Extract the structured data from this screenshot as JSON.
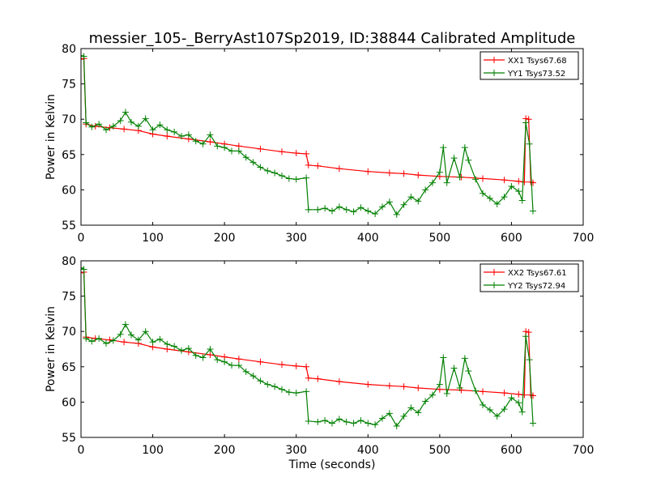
{
  "title": "messier_105-_BerryAst107Sp2019, ID:38844 Calibrated Amplitude",
  "colors": {
    "xx": "#ff0000",
    "yy": "#008000",
    "axis": "#000000"
  },
  "chart_data": [
    {
      "type": "line",
      "ylabel": "Power in Kelvin",
      "xlabel": "",
      "xlim": [
        0,
        700
      ],
      "ylim": [
        55,
        80
      ],
      "xticks": [
        "0",
        "100",
        "200",
        "300",
        "400",
        "500",
        "600",
        "700"
      ],
      "yticks": [
        "55",
        "60",
        "65",
        "70",
        "75",
        "80"
      ],
      "legend_position": "top-right",
      "series": [
        {
          "name": "XX1 Tsys67.68",
          "color": "#ff0000",
          "points": [
            [
              0,
              78.5
            ],
            [
              4,
              78.6
            ],
            [
              7,
              69.3
            ],
            [
              20,
              69.0
            ],
            [
              40,
              68.8
            ],
            [
              60,
              68.6
            ],
            [
              80,
              68.4
            ],
            [
              100,
              67.9
            ],
            [
              120,
              67.6
            ],
            [
              150,
              67.2
            ],
            [
              180,
              66.8
            ],
            [
              200,
              66.5
            ],
            [
              220,
              66.2
            ],
            [
              250,
              65.8
            ],
            [
              280,
              65.4
            ],
            [
              300,
              65.2
            ],
            [
              314,
              65.1
            ],
            [
              317,
              63.5
            ],
            [
              330,
              63.4
            ],
            [
              360,
              63.0
            ],
            [
              400,
              62.6
            ],
            [
              430,
              62.4
            ],
            [
              450,
              62.3
            ],
            [
              470,
              62.1
            ],
            [
              500,
              61.9
            ],
            [
              530,
              61.8
            ],
            [
              560,
              61.6
            ],
            [
              590,
              61.4
            ],
            [
              610,
              61.2
            ],
            [
              618,
              61.1
            ],
            [
              620,
              70.1
            ],
            [
              624,
              70.0
            ],
            [
              627,
              61.1
            ],
            [
              630,
              61.0
            ]
          ]
        },
        {
          "name": "YY1 Tsys73.52",
          "color": "#008000",
          "points": [
            [
              0,
              79.0
            ],
            [
              4,
              78.9
            ],
            [
              7,
              69.5
            ],
            [
              15,
              68.9
            ],
            [
              25,
              69.3
            ],
            [
              35,
              68.5
            ],
            [
              45,
              69.0
            ],
            [
              55,
              69.8
            ],
            [
              62,
              71.0
            ],
            [
              70,
              69.6
            ],
            [
              80,
              69.0
            ],
            [
              90,
              70.1
            ],
            [
              100,
              68.5
            ],
            [
              110,
              69.2
            ],
            [
              120,
              68.5
            ],
            [
              130,
              68.2
            ],
            [
              140,
              67.6
            ],
            [
              150,
              67.8
            ],
            [
              160,
              66.9
            ],
            [
              170,
              66.5
            ],
            [
              180,
              67.8
            ],
            [
              190,
              66.2
            ],
            [
              200,
              66.0
            ],
            [
              210,
              65.5
            ],
            [
              220,
              65.5
            ],
            [
              230,
              64.6
            ],
            [
              240,
              63.9
            ],
            [
              250,
              63.2
            ],
            [
              260,
              62.7
            ],
            [
              270,
              62.4
            ],
            [
              280,
              62.0
            ],
            [
              290,
              61.6
            ],
            [
              300,
              61.5
            ],
            [
              314,
              61.7
            ],
            [
              317,
              57.2
            ],
            [
              330,
              57.2
            ],
            [
              340,
              57.4
            ],
            [
              350,
              57.0
            ],
            [
              360,
              57.6
            ],
            [
              370,
              57.2
            ],
            [
              380,
              56.9
            ],
            [
              390,
              57.5
            ],
            [
              400,
              57.0
            ],
            [
              410,
              56.6
            ],
            [
              420,
              57.6
            ],
            [
              430,
              58.3
            ],
            [
              440,
              56.5
            ],
            [
              450,
              57.9
            ],
            [
              460,
              59.0
            ],
            [
              470,
              58.4
            ],
            [
              480,
              60.0
            ],
            [
              490,
              61.0
            ],
            [
              500,
              62.5
            ],
            [
              505,
              66.0
            ],
            [
              510,
              61.0
            ],
            [
              520,
              64.5
            ],
            [
              528,
              61.8
            ],
            [
              535,
              66.0
            ],
            [
              540,
              64.2
            ],
            [
              550,
              61.5
            ],
            [
              560,
              59.5
            ],
            [
              570,
              58.8
            ],
            [
              580,
              58.0
            ],
            [
              590,
              59.0
            ],
            [
              600,
              60.5
            ],
            [
              610,
              59.8
            ],
            [
              615,
              58.5
            ],
            [
              620,
              69.5
            ],
            [
              625,
              66.5
            ],
            [
              630,
              57.0
            ]
          ]
        }
      ]
    },
    {
      "type": "line",
      "ylabel": "Power in Kelvin",
      "xlabel": "Time (seconds)",
      "xlim": [
        0,
        700
      ],
      "ylim": [
        55,
        80
      ],
      "xticks": [
        "0",
        "100",
        "200",
        "300",
        "400",
        "500",
        "600",
        "700"
      ],
      "yticks": [
        "55",
        "60",
        "65",
        "70",
        "75",
        "80"
      ],
      "legend_position": "top-right",
      "series": [
        {
          "name": "XX2 Tsys67.61",
          "color": "#ff0000",
          "points": [
            [
              0,
              78.3
            ],
            [
              4,
              78.4
            ],
            [
              7,
              69.2
            ],
            [
              20,
              69.0
            ],
            [
              40,
              68.8
            ],
            [
              60,
              68.5
            ],
            [
              80,
              68.3
            ],
            [
              100,
              67.8
            ],
            [
              120,
              67.5
            ],
            [
              150,
              67.1
            ],
            [
              180,
              66.7
            ],
            [
              200,
              66.4
            ],
            [
              220,
              66.1
            ],
            [
              250,
              65.7
            ],
            [
              280,
              65.3
            ],
            [
              300,
              65.1
            ],
            [
              314,
              65.0
            ],
            [
              317,
              63.4
            ],
            [
              330,
              63.3
            ],
            [
              360,
              62.9
            ],
            [
              400,
              62.5
            ],
            [
              430,
              62.3
            ],
            [
              450,
              62.2
            ],
            [
              470,
              62.0
            ],
            [
              500,
              61.8
            ],
            [
              530,
              61.7
            ],
            [
              560,
              61.5
            ],
            [
              590,
              61.3
            ],
            [
              610,
              61.1
            ],
            [
              618,
              61.0
            ],
            [
              620,
              70.0
            ],
            [
              624,
              69.9
            ],
            [
              627,
              61.0
            ],
            [
              630,
              60.9
            ]
          ]
        },
        {
          "name": "YY2 Tsys72.94",
          "color": "#008000",
          "points": [
            [
              0,
              79.0
            ],
            [
              4,
              78.8
            ],
            [
              7,
              69.0
            ],
            [
              15,
              68.6
            ],
            [
              25,
              69.0
            ],
            [
              35,
              68.3
            ],
            [
              45,
              68.7
            ],
            [
              55,
              69.6
            ],
            [
              62,
              71.0
            ],
            [
              70,
              69.5
            ],
            [
              80,
              68.8
            ],
            [
              90,
              70.0
            ],
            [
              100,
              68.5
            ],
            [
              110,
              68.9
            ],
            [
              120,
              68.2
            ],
            [
              130,
              67.9
            ],
            [
              140,
              67.3
            ],
            [
              150,
              67.6
            ],
            [
              160,
              66.6
            ],
            [
              170,
              66.3
            ],
            [
              180,
              67.5
            ],
            [
              190,
              66.0
            ],
            [
              200,
              65.7
            ],
            [
              210,
              65.2
            ],
            [
              220,
              65.2
            ],
            [
              230,
              64.3
            ],
            [
              240,
              63.7
            ],
            [
              250,
              63.0
            ],
            [
              260,
              62.5
            ],
            [
              270,
              62.2
            ],
            [
              280,
              61.8
            ],
            [
              290,
              61.4
            ],
            [
              300,
              61.3
            ],
            [
              314,
              61.5
            ],
            [
              317,
              57.3
            ],
            [
              330,
              57.2
            ],
            [
              340,
              57.4
            ],
            [
              350,
              57.0
            ],
            [
              360,
              57.6
            ],
            [
              370,
              57.2
            ],
            [
              380,
              57.0
            ],
            [
              390,
              57.4
            ],
            [
              400,
              57.0
            ],
            [
              410,
              56.8
            ],
            [
              420,
              57.7
            ],
            [
              430,
              58.4
            ],
            [
              440,
              56.6
            ],
            [
              450,
              58.0
            ],
            [
              460,
              59.2
            ],
            [
              470,
              58.5
            ],
            [
              480,
              60.1
            ],
            [
              490,
              61.0
            ],
            [
              500,
              62.5
            ],
            [
              505,
              66.3
            ],
            [
              510,
              61.2
            ],
            [
              520,
              64.8
            ],
            [
              528,
              62.0
            ],
            [
              535,
              66.2
            ],
            [
              540,
              64.4
            ],
            [
              550,
              61.6
            ],
            [
              560,
              59.6
            ],
            [
              570,
              58.9
            ],
            [
              580,
              58.0
            ],
            [
              590,
              59.0
            ],
            [
              600,
              60.6
            ],
            [
              610,
              59.9
            ],
            [
              615,
              58.6
            ],
            [
              620,
              69.3
            ],
            [
              625,
              66.0
            ],
            [
              630,
              57.0
            ]
          ]
        }
      ]
    }
  ]
}
